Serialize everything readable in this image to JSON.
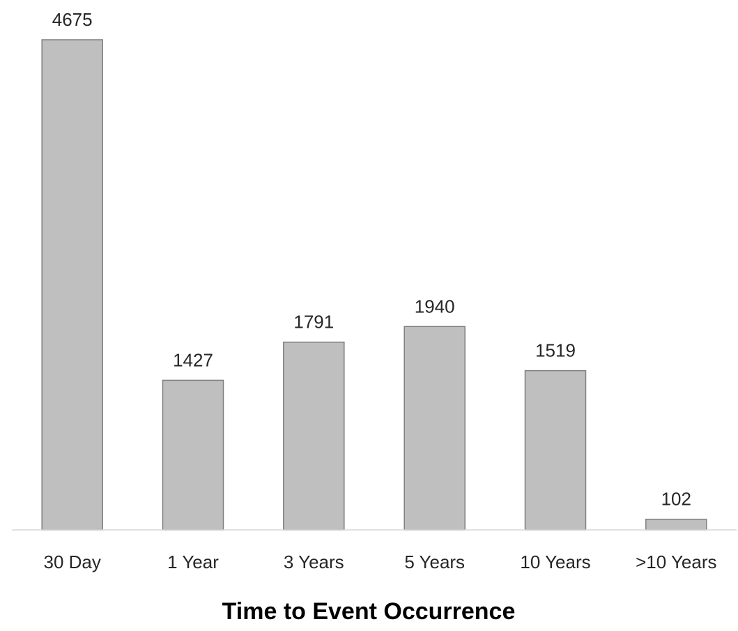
{
  "chart_data": {
    "type": "bar",
    "title": "",
    "xlabel": "Time to Event Occurrence",
    "ylabel": "",
    "categories": [
      "30 Day",
      "1 Year",
      "3 Years",
      "5 Years",
      "10 Years",
      ">10 Years"
    ],
    "values": [
      4675,
      1427,
      1791,
      1940,
      1519,
      102
    ],
    "ylim": [
      0,
      4675
    ],
    "grid": false,
    "legend": "none",
    "colors": {
      "bar_fill": "#bfbfbf",
      "bar_stroke": "#7f7f7f",
      "axis": "#d9d9d9",
      "text": "#262626"
    }
  }
}
